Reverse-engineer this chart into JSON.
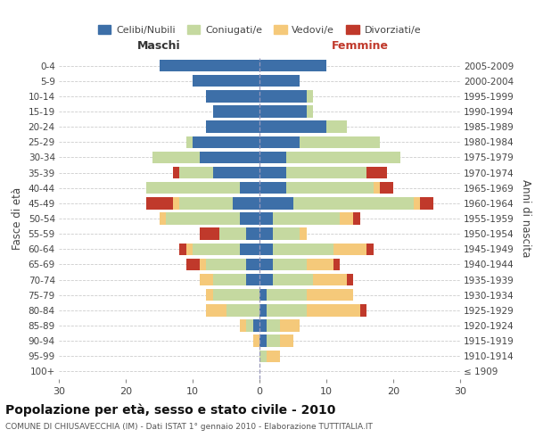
{
  "age_groups": [
    "100+",
    "95-99",
    "90-94",
    "85-89",
    "80-84",
    "75-79",
    "70-74",
    "65-69",
    "60-64",
    "55-59",
    "50-54",
    "45-49",
    "40-44",
    "35-39",
    "30-34",
    "25-29",
    "20-24",
    "15-19",
    "10-14",
    "5-9",
    "0-4"
  ],
  "birth_years": [
    "≤ 1909",
    "1910-1914",
    "1915-1919",
    "1920-1924",
    "1925-1929",
    "1930-1934",
    "1935-1939",
    "1940-1944",
    "1945-1949",
    "1950-1954",
    "1955-1959",
    "1960-1964",
    "1965-1969",
    "1970-1974",
    "1975-1979",
    "1980-1984",
    "1985-1989",
    "1990-1994",
    "1995-1999",
    "2000-2004",
    "2005-2009"
  ],
  "colors": {
    "celibi": "#3d6fa8",
    "coniugati": "#c5d9a0",
    "vedovi": "#f5c97a",
    "divorziati": "#c0392b"
  },
  "male": {
    "celibi": [
      0,
      0,
      0,
      1,
      0,
      0,
      2,
      2,
      3,
      2,
      3,
      4,
      3,
      7,
      9,
      10,
      8,
      7,
      8,
      10,
      15
    ],
    "coniugati": [
      0,
      0,
      0,
      1,
      5,
      7,
      5,
      6,
      7,
      4,
      11,
      8,
      14,
      5,
      7,
      1,
      0,
      0,
      0,
      0,
      0
    ],
    "vedovi": [
      0,
      0,
      1,
      1,
      3,
      1,
      2,
      1,
      1,
      0,
      1,
      1,
      0,
      0,
      0,
      0,
      0,
      0,
      0,
      0,
      0
    ],
    "divorziati": [
      0,
      0,
      0,
      0,
      0,
      0,
      0,
      2,
      1,
      3,
      0,
      4,
      0,
      1,
      0,
      0,
      0,
      0,
      0,
      0,
      0
    ]
  },
  "female": {
    "nubili": [
      0,
      0,
      1,
      1,
      1,
      1,
      2,
      2,
      2,
      2,
      2,
      5,
      4,
      4,
      4,
      6,
      10,
      7,
      7,
      6,
      10
    ],
    "coniugate": [
      0,
      1,
      2,
      2,
      6,
      6,
      6,
      5,
      9,
      4,
      10,
      18,
      13,
      12,
      17,
      12,
      3,
      1,
      1,
      0,
      0
    ],
    "vedove": [
      0,
      2,
      2,
      3,
      8,
      7,
      5,
      4,
      5,
      1,
      2,
      1,
      1,
      0,
      0,
      0,
      0,
      0,
      0,
      0,
      0
    ],
    "divorziate": [
      0,
      0,
      0,
      0,
      1,
      0,
      1,
      1,
      1,
      0,
      1,
      2,
      2,
      3,
      0,
      0,
      0,
      0,
      0,
      0,
      0
    ]
  },
  "xlim": 30,
  "title": "Popolazione per età, sesso e stato civile - 2010",
  "subtitle": "COMUNE DI CHIUSAVECCHIA (IM) - Dati ISTAT 1° gennaio 2010 - Elaborazione TUTTITALIA.IT",
  "ylabel_left": "Fasce di età",
  "ylabel_right": "Anni di nascita",
  "header_left": "Maschi",
  "header_right": "Femmine",
  "legend_labels": [
    "Celibi/Nubili",
    "Coniugati/e",
    "Vedovi/e",
    "Divorziati/e"
  ],
  "bg_color": "#ffffff",
  "grid_color": "#cccccc",
  "xticks": [
    -30,
    -20,
    -10,
    0,
    10,
    20,
    30
  ]
}
